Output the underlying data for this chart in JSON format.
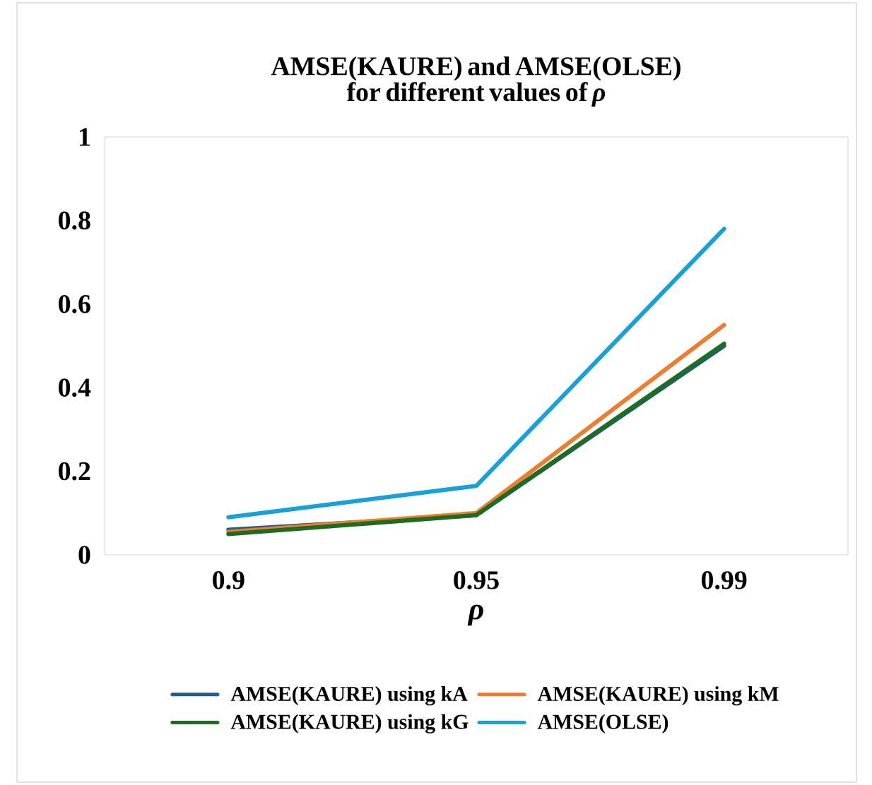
{
  "chart_data": {
    "type": "line",
    "title": "AMSE(KAURE) and AMSE(OLSE) for different values of *ρ*",
    "xlabel": "ρ",
    "categories": [
      "0.9",
      "0.95",
      "0.99"
    ],
    "series": [
      {
        "name": "AMSE(KAURE) using kA",
        "color": "#1f5c8b",
        "values": [
          0.06,
          0.095,
          0.5
        ]
      },
      {
        "name": "AMSE(KAURE) using kM",
        "color": "#ed7d31",
        "values": [
          0.055,
          0.1,
          0.55
        ]
      },
      {
        "name": "AMSE(KAURE) using kG",
        "color": "#1e6b22",
        "values": [
          0.05,
          0.095,
          0.505
        ]
      },
      {
        "name": "AMSE(OLSE)",
        "color": "#19a0d8",
        "values": [
          0.09,
          0.165,
          0.78
        ]
      }
    ],
    "ylim": [
      0,
      1
    ],
    "yticks": [
      0,
      0.2,
      0.4,
      0.6,
      0.8,
      1
    ],
    "grid": false,
    "legend": "bottom",
    "marker": "none",
    "line_style": "solid"
  }
}
